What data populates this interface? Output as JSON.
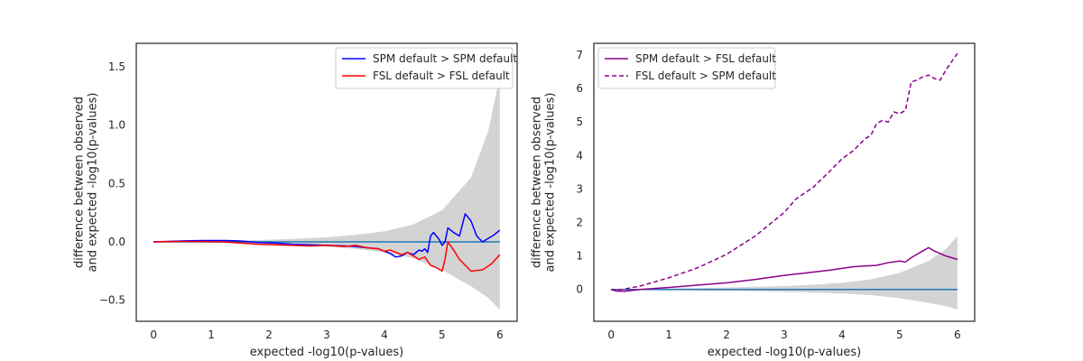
{
  "chart_data": [
    {
      "type": "line",
      "xlabel": "expected -log10(p-values)",
      "ylabel": [
        "difference between observed",
        "and expected -log10(p-values)"
      ],
      "xlim": [
        -0.3,
        6.3
      ],
      "ylim": [
        -0.68,
        1.7
      ],
      "xticks": [
        0,
        1,
        2,
        3,
        4,
        5,
        6
      ],
      "yticks": [
        -0.5,
        0.0,
        0.5,
        1.0,
        1.5
      ],
      "ytick_labels": [
        "−0.5",
        "0.0",
        "0.5",
        "1.0",
        "1.5"
      ],
      "legend_position": "top-right",
      "band": {
        "color": "#d3d3d3",
        "x": [
          0,
          0.5,
          1,
          1.5,
          2,
          2.5,
          3,
          3.5,
          4,
          4.5,
          5,
          5.5,
          5.8,
          6
        ],
        "upper": [
          0.002,
          0.004,
          0.007,
          0.012,
          0.018,
          0.027,
          0.04,
          0.06,
          0.09,
          0.15,
          0.27,
          0.55,
          0.95,
          1.42
        ],
        "lower": [
          -0.002,
          -0.004,
          -0.007,
          -0.012,
          -0.018,
          -0.027,
          -0.04,
          -0.06,
          -0.09,
          -0.14,
          -0.24,
          -0.38,
          -0.48,
          -0.58
        ]
      },
      "reference": {
        "color": "#1f77b4",
        "x": [
          0,
          6
        ],
        "y": [
          0,
          0
        ]
      },
      "series": [
        {
          "name": "SPM default > SPM default",
          "color": "#0000ff",
          "dash": "solid",
          "x": [
            0,
            0.3,
            0.6,
            0.9,
            1.2,
            1.5,
            1.8,
            2.1,
            2.4,
            2.7,
            3.0,
            3.3,
            3.5,
            3.7,
            3.9,
            4.0,
            4.1,
            4.2,
            4.3,
            4.4,
            4.5,
            4.6,
            4.65,
            4.7,
            4.75,
            4.8,
            4.85,
            4.9,
            4.95,
            5.0,
            5.05,
            5.1,
            5.2,
            5.3,
            5.4,
            5.5,
            5.6,
            5.7,
            5.8,
            5.9,
            6.0
          ],
          "y": [
            0,
            0.005,
            0.01,
            0.012,
            0.012,
            0.008,
            -0.005,
            -0.01,
            -0.02,
            -0.025,
            -0.03,
            -0.035,
            -0.04,
            -0.05,
            -0.06,
            -0.08,
            -0.1,
            -0.13,
            -0.12,
            -0.09,
            -0.11,
            -0.07,
            -0.08,
            -0.06,
            -0.09,
            0.05,
            0.08,
            0.05,
            0.02,
            -0.03,
            0.0,
            0.12,
            0.08,
            0.05,
            0.24,
            0.18,
            0.05,
            0.0,
            0.03,
            0.06,
            0.1
          ]
        },
        {
          "name": "FSL default > FSL default",
          "color": "#ff0000",
          "dash": "solid",
          "x": [
            0,
            0.3,
            0.6,
            0.9,
            1.2,
            1.5,
            1.8,
            2.1,
            2.4,
            2.7,
            3.0,
            3.3,
            3.5,
            3.7,
            3.9,
            4.0,
            4.1,
            4.2,
            4.3,
            4.4,
            4.5,
            4.6,
            4.7,
            4.8,
            4.9,
            5.0,
            5.05,
            5.1,
            5.2,
            5.3,
            5.5,
            5.7,
            5.85,
            6.0
          ],
          "y": [
            0,
            0.003,
            0.004,
            0.002,
            0.0,
            -0.01,
            -0.02,
            -0.025,
            -0.03,
            -0.035,
            -0.03,
            -0.04,
            -0.03,
            -0.05,
            -0.06,
            -0.08,
            -0.07,
            -0.09,
            -0.11,
            -0.09,
            -0.12,
            -0.15,
            -0.13,
            -0.2,
            -0.22,
            -0.25,
            -0.15,
            0.0,
            -0.07,
            -0.15,
            -0.25,
            -0.24,
            -0.19,
            -0.11
          ]
        }
      ]
    },
    {
      "type": "line",
      "xlabel": "expected -log10(p-values)",
      "ylabel": [
        "difference between observed",
        "and expected -log10(p-values)"
      ],
      "xlim": [
        -0.3,
        6.3
      ],
      "ylim": [
        -0.95,
        7.35
      ],
      "xticks": [
        0,
        1,
        2,
        3,
        4,
        5,
        6
      ],
      "yticks": [
        0,
        1,
        2,
        3,
        4,
        5,
        6,
        7
      ],
      "ytick_labels": [
        "0",
        "1",
        "2",
        "3",
        "4",
        "5",
        "6",
        "7"
      ],
      "legend_position": "top-left",
      "band": {
        "color": "#d3d3d3",
        "x": [
          0,
          0.5,
          1,
          1.5,
          2,
          2.5,
          3,
          3.5,
          4,
          4.5,
          5,
          5.5,
          5.8,
          6
        ],
        "upper": [
          0.01,
          0.02,
          0.03,
          0.04,
          0.06,
          0.08,
          0.1,
          0.14,
          0.2,
          0.3,
          0.5,
          0.85,
          1.2,
          1.6
        ],
        "lower": [
          -0.01,
          -0.015,
          -0.02,
          -0.03,
          -0.04,
          -0.05,
          -0.07,
          -0.09,
          -0.12,
          -0.17,
          -0.26,
          -0.4,
          -0.5,
          -0.6
        ]
      },
      "reference": {
        "color": "#1f77b4",
        "x": [
          0,
          6
        ],
        "y": [
          0,
          0
        ]
      },
      "series": [
        {
          "name": "SPM default > FSL default",
          "color": "#8b008b",
          "dash": "solid",
          "x": [
            0,
            0.1,
            0.25,
            0.5,
            1.0,
            1.5,
            2.0,
            2.5,
            3.0,
            3.5,
            3.8,
            4.0,
            4.2,
            4.4,
            4.6,
            4.8,
            5.0,
            5.1,
            5.2,
            5.3,
            5.4,
            5.5,
            5.6,
            5.8,
            6.0
          ],
          "y": [
            0,
            -0.05,
            -0.05,
            0.0,
            0.06,
            0.13,
            0.2,
            0.3,
            0.42,
            0.52,
            0.58,
            0.63,
            0.68,
            0.7,
            0.72,
            0.8,
            0.85,
            0.82,
            0.95,
            1.05,
            1.15,
            1.25,
            1.15,
            1.0,
            0.9
          ]
        },
        {
          "name": "FSL default > SPM default",
          "color": "#8b008b",
          "dash": "dashed",
          "x": [
            0,
            0.1,
            0.25,
            0.5,
            1.0,
            1.5,
            2.0,
            2.5,
            3.0,
            3.2,
            3.5,
            3.8,
            4.0,
            4.2,
            4.4,
            4.5,
            4.6,
            4.7,
            4.8,
            4.9,
            5.0,
            5.1,
            5.2,
            5.3,
            5.4,
            5.5,
            5.6,
            5.7,
            5.8,
            6.0
          ],
          "y": [
            0,
            -0.02,
            0.02,
            0.1,
            0.35,
            0.65,
            1.05,
            1.6,
            2.3,
            2.7,
            3.05,
            3.55,
            3.9,
            4.15,
            4.5,
            4.6,
            4.95,
            5.05,
            5.0,
            5.3,
            5.25,
            5.35,
            6.2,
            6.25,
            6.35,
            6.4,
            6.3,
            6.25,
            6.55,
            7.05
          ]
        }
      ]
    }
  ]
}
